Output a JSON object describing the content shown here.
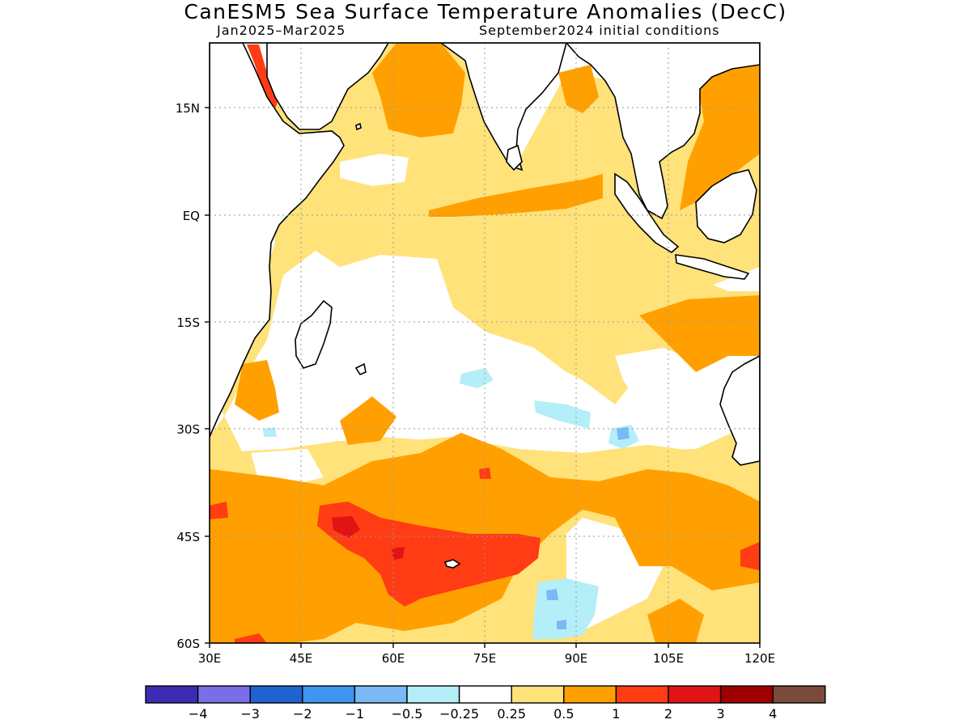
{
  "title": "CanESM5 Sea Surface Temperature Anomalies (DecC)",
  "subtitle_left": "Jan2025–Mar2025",
  "subtitle_right": "September2024 initial conditions",
  "map": {
    "lon_range": [
      30,
      120
    ],
    "lat_range": [
      -60,
      24
    ],
    "lon_ticks": [
      "30E",
      "45E",
      "60E",
      "75E",
      "90E",
      "105E",
      "120E"
    ],
    "lat_ticks": [
      "15N",
      "EQ",
      "15S",
      "30S",
      "45S",
      "60S"
    ]
  },
  "colorbar": {
    "colors": [
      "#3c2cb4",
      "#7a6ee8",
      "#1f63d1",
      "#3d96f0",
      "#7ab9f5",
      "#b4eef8",
      "#ffffff",
      "#ffe27a",
      "#ffa000",
      "#ff3c14",
      "#e01414",
      "#a00000",
      "#7a4b3c"
    ],
    "labels": [
      "−4",
      "−3",
      "−2",
      "−1",
      "−0.5",
      "−0.25",
      "0.25",
      "0.5",
      "1",
      "2",
      "3",
      "4"
    ]
  }
}
